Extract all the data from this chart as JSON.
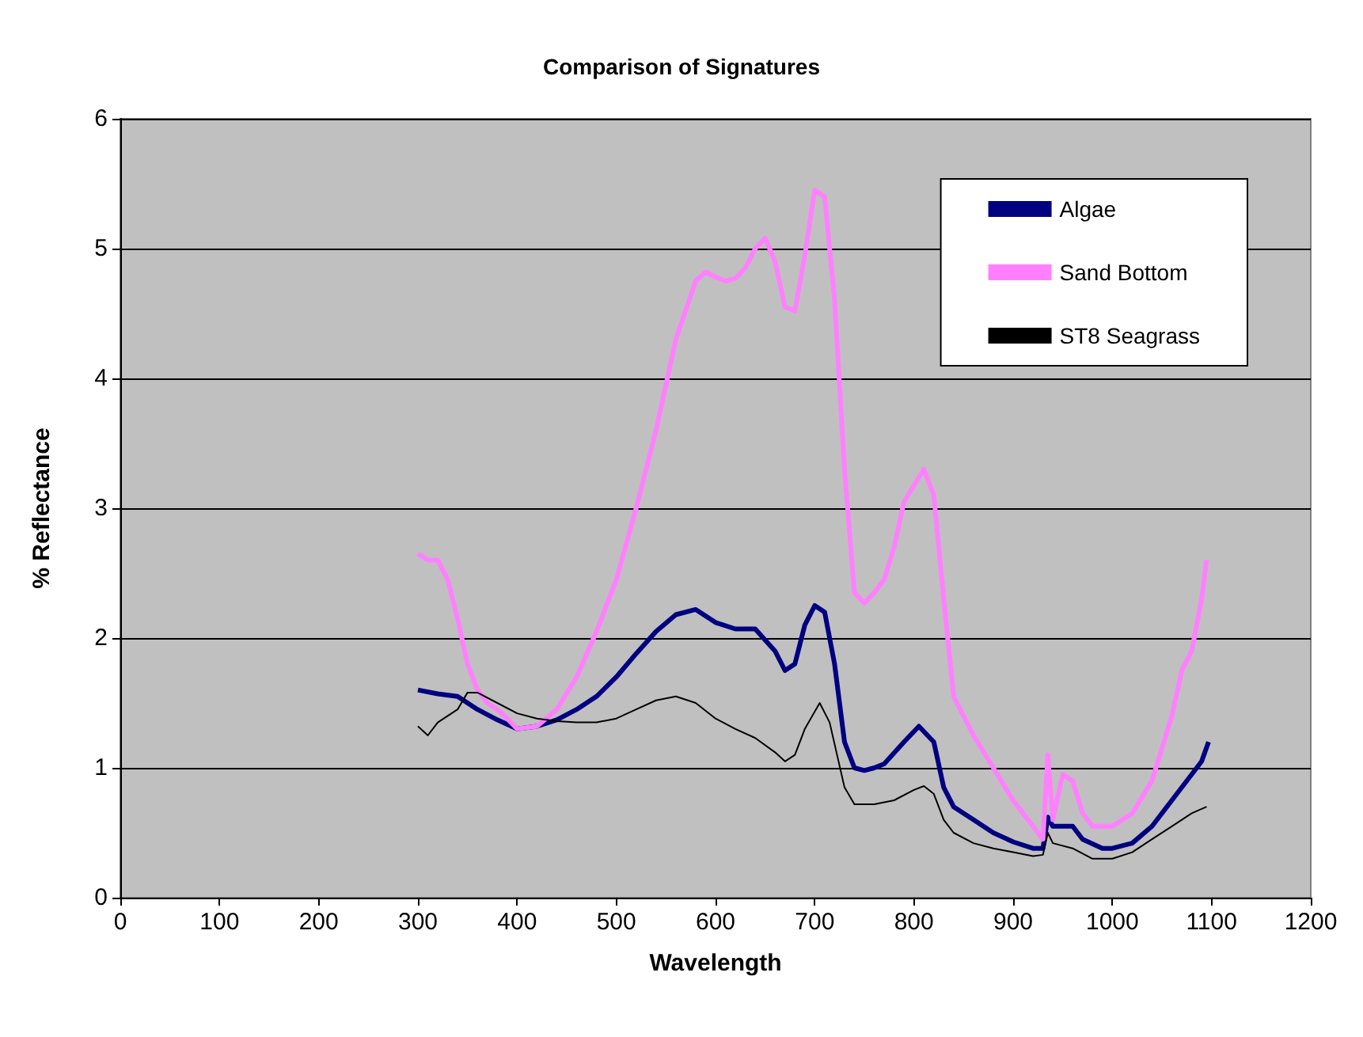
{
  "chart_data": {
    "type": "line",
    "title": "Comparison of Signatures",
    "xlabel": "Wavelength",
    "ylabel": "% Reflectance",
    "xlim": [
      0,
      1200
    ],
    "xticks": [
      0,
      100,
      200,
      300,
      400,
      500,
      600,
      700,
      800,
      900,
      1000,
      1100,
      1200
    ],
    "ylim": [
      0,
      6
    ],
    "yticks": [
      0,
      1,
      2,
      3,
      4,
      5,
      6
    ],
    "grid": "y",
    "legend": "top right",
    "marker": "none",
    "series": [
      {
        "name": "Algae",
        "color": "#000080",
        "x": [
          300,
          320,
          340,
          360,
          380,
          400,
          420,
          440,
          460,
          480,
          500,
          520,
          540,
          560,
          580,
          600,
          620,
          640,
          660,
          670,
          680,
          690,
          700,
          710,
          720,
          730,
          740,
          750,
          760,
          770,
          790,
          805,
          820,
          830,
          840,
          860,
          880,
          900,
          920,
          930,
          935,
          940,
          960,
          970,
          990,
          1000,
          1020,
          1040,
          1060,
          1080,
          1090,
          1097
        ],
        "values": [
          1.6,
          1.57,
          1.55,
          1.45,
          1.37,
          1.3,
          1.32,
          1.37,
          1.45,
          1.55,
          1.7,
          1.88,
          2.05,
          2.18,
          2.22,
          2.12,
          2.07,
          2.07,
          1.9,
          1.75,
          1.8,
          2.1,
          2.25,
          2.2,
          1.8,
          1.2,
          1.0,
          0.98,
          1.0,
          1.03,
          1.2,
          1.32,
          1.2,
          0.85,
          0.7,
          0.6,
          0.5,
          0.43,
          0.38,
          0.38,
          0.62,
          0.55,
          0.55,
          0.45,
          0.38,
          0.38,
          0.42,
          0.55,
          0.75,
          0.95,
          1.05,
          1.2
        ]
      },
      {
        "name": "Sand Bottom",
        "color": "#ff80ff",
        "x": [
          300,
          310,
          320,
          330,
          340,
          350,
          360,
          370,
          380,
          390,
          400,
          420,
          440,
          460,
          480,
          500,
          520,
          540,
          560,
          580,
          590,
          600,
          610,
          620,
          630,
          640,
          650,
          660,
          670,
          680,
          690,
          700,
          710,
          720,
          730,
          740,
          750,
          760,
          770,
          780,
          790,
          810,
          820,
          830,
          840,
          860,
          880,
          900,
          920,
          930,
          935,
          940,
          950,
          960,
          970,
          980,
          1000,
          1020,
          1040,
          1060,
          1070,
          1080,
          1090,
          1095
        ],
        "values": [
          2.65,
          2.6,
          2.6,
          2.45,
          2.15,
          1.8,
          1.6,
          1.5,
          1.45,
          1.38,
          1.3,
          1.32,
          1.45,
          1.7,
          2.05,
          2.45,
          3.0,
          3.6,
          4.3,
          4.75,
          4.82,
          4.78,
          4.75,
          4.77,
          4.85,
          5.0,
          5.08,
          4.9,
          4.55,
          4.52,
          4.95,
          5.45,
          5.4,
          4.6,
          3.3,
          2.35,
          2.27,
          2.35,
          2.45,
          2.7,
          3.05,
          3.3,
          3.1,
          2.3,
          1.55,
          1.25,
          1.0,
          0.75,
          0.55,
          0.45,
          1.1,
          0.6,
          0.95,
          0.9,
          0.65,
          0.55,
          0.55,
          0.65,
          0.9,
          1.4,
          1.75,
          1.9,
          2.3,
          2.6
        ]
      },
      {
        "name": "ST8 Seagrass",
        "color": "#000000",
        "x": [
          300,
          310,
          320,
          340,
          350,
          360,
          380,
          400,
          420,
          440,
          460,
          480,
          500,
          520,
          540,
          560,
          580,
          600,
          620,
          640,
          660,
          670,
          680,
          690,
          705,
          715,
          730,
          740,
          760,
          780,
          800,
          810,
          820,
          830,
          840,
          860,
          880,
          900,
          920,
          930,
          935,
          940,
          960,
          980,
          1000,
          1020,
          1040,
          1060,
          1080,
          1095
        ],
        "values": [
          1.32,
          1.25,
          1.35,
          1.45,
          1.58,
          1.58,
          1.5,
          1.42,
          1.38,
          1.36,
          1.35,
          1.35,
          1.38,
          1.45,
          1.52,
          1.55,
          1.5,
          1.38,
          1.3,
          1.23,
          1.12,
          1.05,
          1.1,
          1.3,
          1.5,
          1.35,
          0.85,
          0.72,
          0.72,
          0.75,
          0.83,
          0.86,
          0.8,
          0.6,
          0.5,
          0.42,
          0.38,
          0.35,
          0.32,
          0.33,
          0.5,
          0.42,
          0.38,
          0.3,
          0.3,
          0.35,
          0.45,
          0.55,
          0.65,
          0.7
        ]
      }
    ]
  }
}
